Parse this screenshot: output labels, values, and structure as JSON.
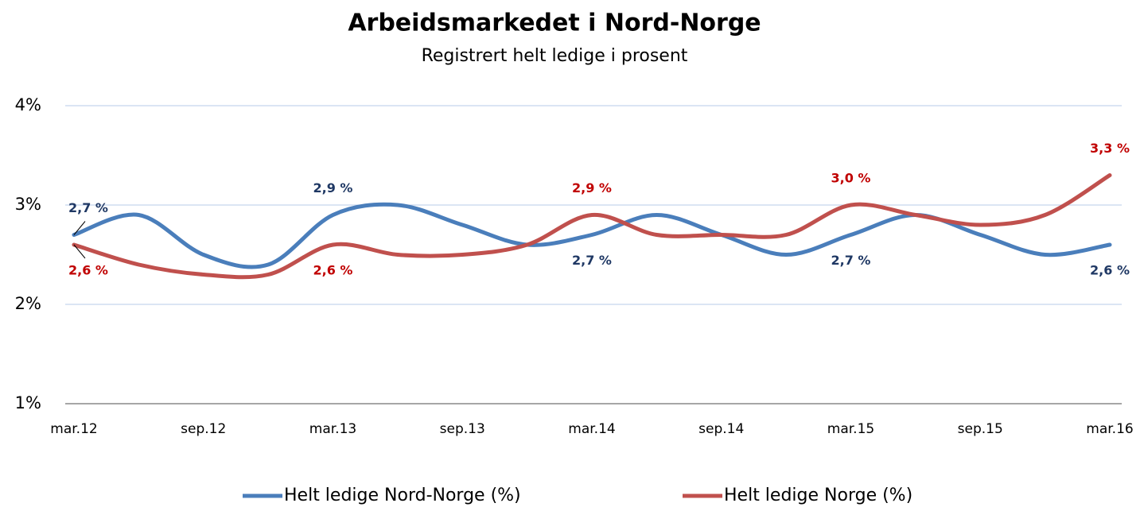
{
  "chart_data": {
    "type": "line",
    "title": "Arbeidsmarkedet i Nord-Norge",
    "subtitle": "Registrert helt ledige i prosent",
    "categories": [
      "mar.12",
      null,
      "sep.12",
      null,
      "mar.13",
      null,
      "sep.13",
      null,
      "mar.14",
      null,
      "sep.14",
      null,
      "mar.15",
      null,
      "sep.15",
      null,
      "mar.16"
    ],
    "series": [
      {
        "name": "Helt ledige Nord-Norge (%)",
        "color": "#4a7ebb",
        "label_color": "#1f3864",
        "values": [
          2.7,
          2.9,
          2.5,
          2.4,
          2.9,
          3.0,
          2.8,
          2.6,
          2.7,
          2.9,
          2.7,
          2.5,
          2.7,
          2.9,
          2.7,
          2.5,
          2.6
        ],
        "value_labels": [
          "2,7 %",
          null,
          null,
          null,
          "2,9 %",
          null,
          null,
          null,
          "2,7 %",
          null,
          null,
          null,
          "2,7 %",
          null,
          null,
          null,
          "2,6 %"
        ]
      },
      {
        "name": "Helt ledige Norge (%)",
        "color": "#c0504d",
        "label_color": "#c00000",
        "values": [
          2.6,
          2.4,
          2.3,
          2.3,
          2.6,
          2.5,
          2.5,
          2.6,
          2.9,
          2.7,
          2.7,
          2.7,
          3.0,
          2.9,
          2.8,
          2.9,
          3.3
        ],
        "value_labels": [
          "2,6 %",
          null,
          null,
          null,
          "2,6 %",
          null,
          null,
          null,
          "2,9 %",
          null,
          null,
          null,
          "3,0 %",
          null,
          null,
          null,
          "3,3 %"
        ]
      }
    ],
    "ylim": [
      1,
      4
    ],
    "yticks": [
      {
        "value": 1,
        "label": "1%"
      },
      {
        "value": 2,
        "label": "2%"
      },
      {
        "value": 3,
        "label": "3%"
      },
      {
        "value": 4,
        "label": "4%"
      }
    ],
    "grid": true,
    "smooth": true,
    "legend": "bottom"
  }
}
